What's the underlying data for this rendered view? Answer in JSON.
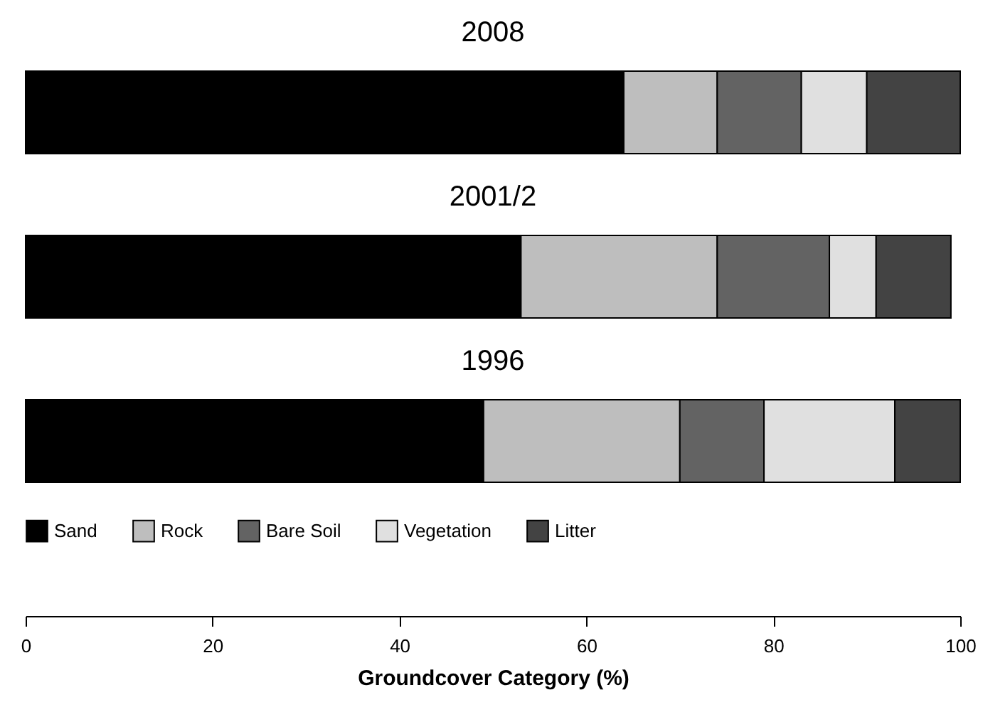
{
  "chart_data": {
    "type": "bar",
    "orientation": "horizontal",
    "stacked": true,
    "categories": [
      "2008",
      "2001/2",
      "1996"
    ],
    "series": [
      {
        "name": "Sand",
        "color": "#000000",
        "values": [
          64,
          53,
          49
        ]
      },
      {
        "name": "Rock",
        "color": "#bebebe",
        "values": [
          10,
          21,
          21
        ]
      },
      {
        "name": "Bare Soil",
        "color": "#636363",
        "values": [
          9,
          12,
          9
        ]
      },
      {
        "name": "Vegetation",
        "color": "#e0e0e0",
        "values": [
          7,
          5,
          14
        ]
      },
      {
        "name": "Litter",
        "color": "#434343",
        "values": [
          10,
          8,
          7
        ]
      }
    ],
    "xlabel": "Groundcover Category (%)",
    "xlim": [
      0,
      100
    ],
    "xticks": [
      0,
      20,
      40,
      60,
      80,
      100
    ],
    "grid": false,
    "legend": "bottom"
  }
}
